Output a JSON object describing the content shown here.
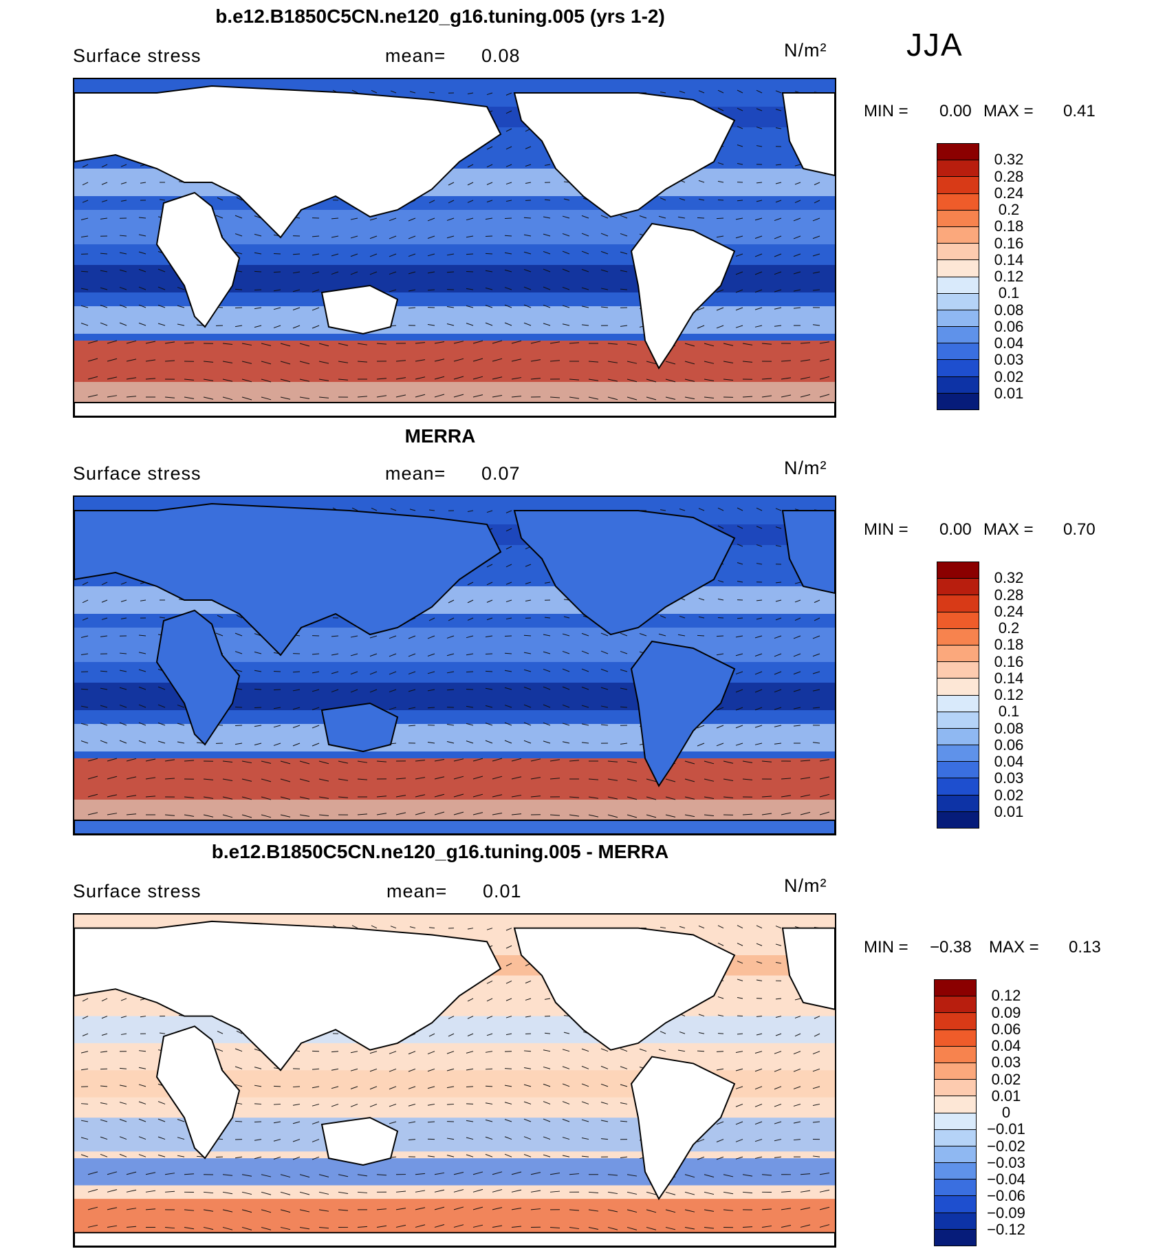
{
  "season": "JJA",
  "panels": [
    {
      "id": "model",
      "title": "b.e12.B1850C5CN.ne120_g16.tuning.005 (yrs 1-2)",
      "variable": "Surface stress",
      "mean_label": "mean=",
      "mean_value": "0.08",
      "units": "N/m²",
      "min_label": "MIN =",
      "min_value": "0.00",
      "max_label": "MAX =",
      "max_value": "0.41",
      "colorbar_labels": [
        "0.32",
        "0.28",
        "0.24",
        "0.2",
        "0.18",
        "0.16",
        "0.14",
        "0.12",
        "0.1",
        "0.08",
        "0.06",
        "0.04",
        "0.03",
        "0.02",
        "0.01"
      ],
      "colorbar_colors": [
        "#8b0000",
        "#b81e0e",
        "#d83a17",
        "#ef5c2a",
        "#f7834e",
        "#fba87c",
        "#fdcbaf",
        "#fde7d6",
        "#d9eafb",
        "#b5d3f7",
        "#8fb8f2",
        "#5f92ea",
        "#3a6fe0",
        "#1e4fcf",
        "#0d33a6",
        "#061c7a"
      ]
    },
    {
      "id": "obs",
      "title": "MERRA",
      "variable": "Surface stress",
      "mean_label": "mean=",
      "mean_value": "0.07",
      "units": "N/m²",
      "min_label": "MIN =",
      "min_value": "0.00",
      "max_label": "MAX =",
      "max_value": "0.70",
      "colorbar_labels": [
        "0.32",
        "0.28",
        "0.24",
        "0.2",
        "0.18",
        "0.16",
        "0.14",
        "0.12",
        "0.1",
        "0.08",
        "0.06",
        "0.04",
        "0.03",
        "0.02",
        "0.01"
      ],
      "colorbar_colors": [
        "#8b0000",
        "#b81e0e",
        "#d83a17",
        "#ef5c2a",
        "#f7834e",
        "#fba87c",
        "#fdcbaf",
        "#fde7d6",
        "#d9eafb",
        "#b5d3f7",
        "#8fb8f2",
        "#5f92ea",
        "#3a6fe0",
        "#1e4fcf",
        "#0d33a6",
        "#061c7a"
      ]
    },
    {
      "id": "diff",
      "title": "b.e12.B1850C5CN.ne120_g16.tuning.005 - MERRA",
      "variable": "Surface stress",
      "mean_label": "mean=",
      "mean_value": "0.01",
      "units": "N/m²",
      "min_label": "MIN =",
      "min_value": "−0.38",
      "max_label": "MAX =",
      "max_value": "0.13",
      "colorbar_labels": [
        "0.12",
        "0.09",
        "0.06",
        "0.04",
        "0.03",
        "0.02",
        "0.01",
        "0",
        "−0.01",
        "−0.02",
        "−0.03",
        "−0.04",
        "−0.06",
        "−0.09",
        "−0.12"
      ],
      "colorbar_colors": [
        "#8b0000",
        "#b81e0e",
        "#d83a17",
        "#ef5c2a",
        "#f7834e",
        "#fba87c",
        "#fdcbaf",
        "#fde7d6",
        "#d9eafb",
        "#b5d3f7",
        "#8fb8f2",
        "#5f92ea",
        "#3a6fe0",
        "#1e4fcf",
        "#0d33a6",
        "#061c7a"
      ]
    }
  ]
}
